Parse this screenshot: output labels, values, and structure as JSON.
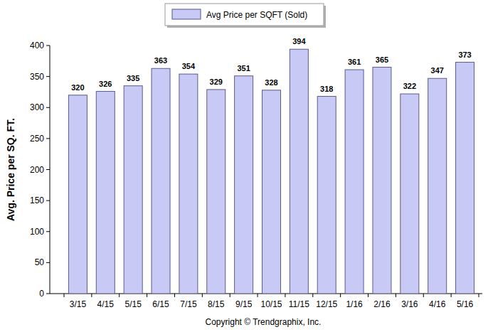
{
  "chart_data": {
    "type": "bar",
    "y_label": "Avg. Price per SQ. FT.",
    "categories": [
      "3/15",
      "4/15",
      "5/15",
      "6/15",
      "7/15",
      "8/15",
      "9/15",
      "10/15",
      "11/15",
      "12/15",
      "1/16",
      "2/16",
      "3/16",
      "4/16",
      "5/16"
    ],
    "series": [
      {
        "name": "Avg Price per SQFT (Sold)",
        "color": "#c9c9f5",
        "values": [
          320,
          326,
          335,
          363,
          354,
          329,
          351,
          328,
          394,
          318,
          361,
          365,
          322,
          347,
          373
        ]
      }
    ],
    "ylim": [
      0,
      400
    ],
    "yticks": [
      0,
      50,
      100,
      150,
      200,
      250,
      300,
      350,
      400
    ],
    "grid": false,
    "legend": "top",
    "data_labels": true,
    "annotations": [
      "Copyright © Trendgraphix, Inc."
    ]
  }
}
